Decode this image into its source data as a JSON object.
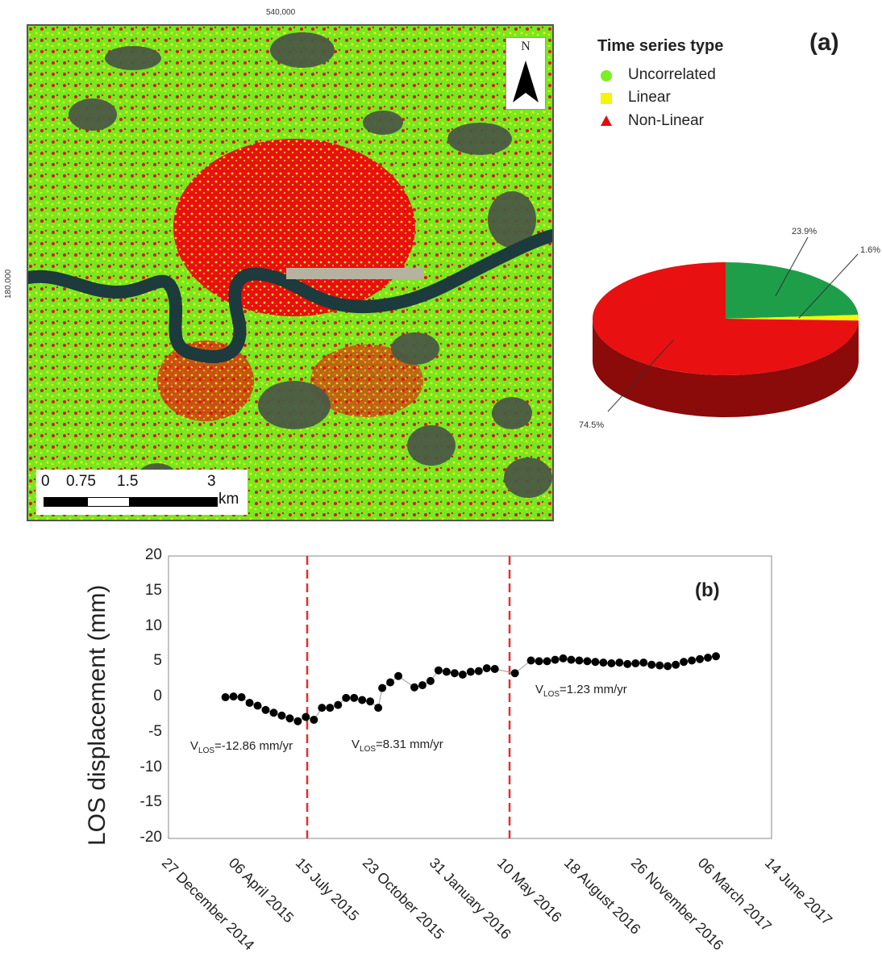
{
  "map": {
    "x_coord_label": "540,000",
    "y_coord_label": "180,000",
    "north_label": "N",
    "scale": {
      "ticks": [
        "0",
        "0.75",
        "1.5",
        "3"
      ],
      "unit": "km"
    }
  },
  "legend": {
    "title": "Time series type",
    "items": [
      {
        "label": "Uncorrelated",
        "color": "#7cee23",
        "marker": "circle"
      },
      {
        "label": "Linear",
        "color": "#f5f50a",
        "marker": "square"
      },
      {
        "label": "Non-Linear",
        "color": "#e01010",
        "marker": "triangle"
      }
    ]
  },
  "panel_a_label": "(a)",
  "panel_b_label": "(b)",
  "colors": {
    "uncorrelated": "#1f9e4a",
    "linear": "#f5f50a",
    "nonlinear": "#e81010",
    "vline": "#e03030"
  },
  "chart_data": [
    {
      "type": "pie",
      "slices": [
        {
          "label": "23.9%",
          "value": 23.9,
          "color": "#1f9e4a"
        },
        {
          "label": "1.6%",
          "value": 1.6,
          "color": "#f5f50a"
        },
        {
          "label": "74.5%",
          "value": 74.5,
          "color": "#e81010"
        }
      ]
    },
    {
      "type": "scatter",
      "ylabel": "LOS displacement (mm)",
      "ylim": [
        -20,
        20
      ],
      "yticks": [
        "20",
        "15",
        "10",
        "5",
        "0",
        "-5",
        "-10",
        "-15",
        "-20"
      ],
      "xlim": [
        "2014-12-27",
        "2017-06-14"
      ],
      "xticks": [
        "27 December 2014",
        "06 April 2015",
        "15 July 2015",
        "23 October 2015",
        "31 January 2016",
        "10 May 2016",
        "18 August 2016",
        "26 November 2016",
        "06 March 2017",
        "14 June 2017"
      ],
      "breakpoints": [
        "2015-07-22",
        "2016-05-19"
      ],
      "annotations": [
        {
          "prefix": "V",
          "sub": "LOS",
          "text": "=-12.86 mm/yr"
        },
        {
          "prefix": "V",
          "sub": "LOS",
          "text": "=8.31 mm/yr"
        },
        {
          "prefix": "V",
          "sub": "LOS",
          "text": "=1.23 mm/yr"
        }
      ],
      "points": [
        {
          "x": "2015-03-22",
          "y": 0.0
        },
        {
          "x": "2015-04-03",
          "y": 0.1
        },
        {
          "x": "2015-04-15",
          "y": 0.0
        },
        {
          "x": "2015-04-27",
          "y": -0.8
        },
        {
          "x": "2015-05-09",
          "y": -1.2
        },
        {
          "x": "2015-05-21",
          "y": -1.8
        },
        {
          "x": "2015-06-02",
          "y": -2.2
        },
        {
          "x": "2015-06-14",
          "y": -2.6
        },
        {
          "x": "2015-06-26",
          "y": -3.0
        },
        {
          "x": "2015-07-08",
          "y": -3.4
        },
        {
          "x": "2015-07-20",
          "y": -2.8
        },
        {
          "x": "2015-08-01",
          "y": -3.2
        },
        {
          "x": "2015-08-13",
          "y": -1.5
        },
        {
          "x": "2015-08-25",
          "y": -1.5
        },
        {
          "x": "2015-09-06",
          "y": -1.1
        },
        {
          "x": "2015-09-18",
          "y": -0.1
        },
        {
          "x": "2015-09-30",
          "y": -0.1
        },
        {
          "x": "2015-10-12",
          "y": -0.4
        },
        {
          "x": "2015-10-24",
          "y": -0.6
        },
        {
          "x": "2015-11-05",
          "y": -1.5
        },
        {
          "x": "2015-11-11",
          "y": 1.3
        },
        {
          "x": "2015-11-23",
          "y": 2.1
        },
        {
          "x": "2015-12-05",
          "y": 3.0
        },
        {
          "x": "2015-12-29",
          "y": 1.4
        },
        {
          "x": "2016-01-10",
          "y": 1.7
        },
        {
          "x": "2016-01-22",
          "y": 2.3
        },
        {
          "x": "2016-02-03",
          "y": 3.8
        },
        {
          "x": "2016-02-15",
          "y": 3.6
        },
        {
          "x": "2016-02-27",
          "y": 3.4
        },
        {
          "x": "2016-03-10",
          "y": 3.2
        },
        {
          "x": "2016-03-22",
          "y": 3.6
        },
        {
          "x": "2016-04-03",
          "y": 3.7
        },
        {
          "x": "2016-04-15",
          "y": 4.1
        },
        {
          "x": "2016-04-27",
          "y": 4.0
        },
        {
          "x": "2016-05-27",
          "y": 3.4
        },
        {
          "x": "2016-06-20",
          "y": 5.2
        },
        {
          "x": "2016-07-02",
          "y": 5.1
        },
        {
          "x": "2016-07-14",
          "y": 5.1
        },
        {
          "x": "2016-07-26",
          "y": 5.3
        },
        {
          "x": "2016-08-07",
          "y": 5.5
        },
        {
          "x": "2016-08-19",
          "y": 5.3
        },
        {
          "x": "2016-08-31",
          "y": 5.2
        },
        {
          "x": "2016-09-12",
          "y": 5.1
        },
        {
          "x": "2016-09-24",
          "y": 5.0
        },
        {
          "x": "2016-10-06",
          "y": 4.9
        },
        {
          "x": "2016-10-18",
          "y": 4.8
        },
        {
          "x": "2016-10-30",
          "y": 4.9
        },
        {
          "x": "2016-11-11",
          "y": 4.7
        },
        {
          "x": "2016-11-23",
          "y": 4.8
        },
        {
          "x": "2016-12-05",
          "y": 4.9
        },
        {
          "x": "2016-12-17",
          "y": 4.6
        },
        {
          "x": "2016-12-29",
          "y": 4.5
        },
        {
          "x": "2017-01-10",
          "y": 4.4
        },
        {
          "x": "2017-01-22",
          "y": 4.6
        },
        {
          "x": "2017-02-03",
          "y": 5.0
        },
        {
          "x": "2017-02-15",
          "y": 5.2
        },
        {
          "x": "2017-02-27",
          "y": 5.4
        },
        {
          "x": "2017-03-11",
          "y": 5.6
        },
        {
          "x": "2017-03-23",
          "y": 5.8
        }
      ]
    }
  ]
}
